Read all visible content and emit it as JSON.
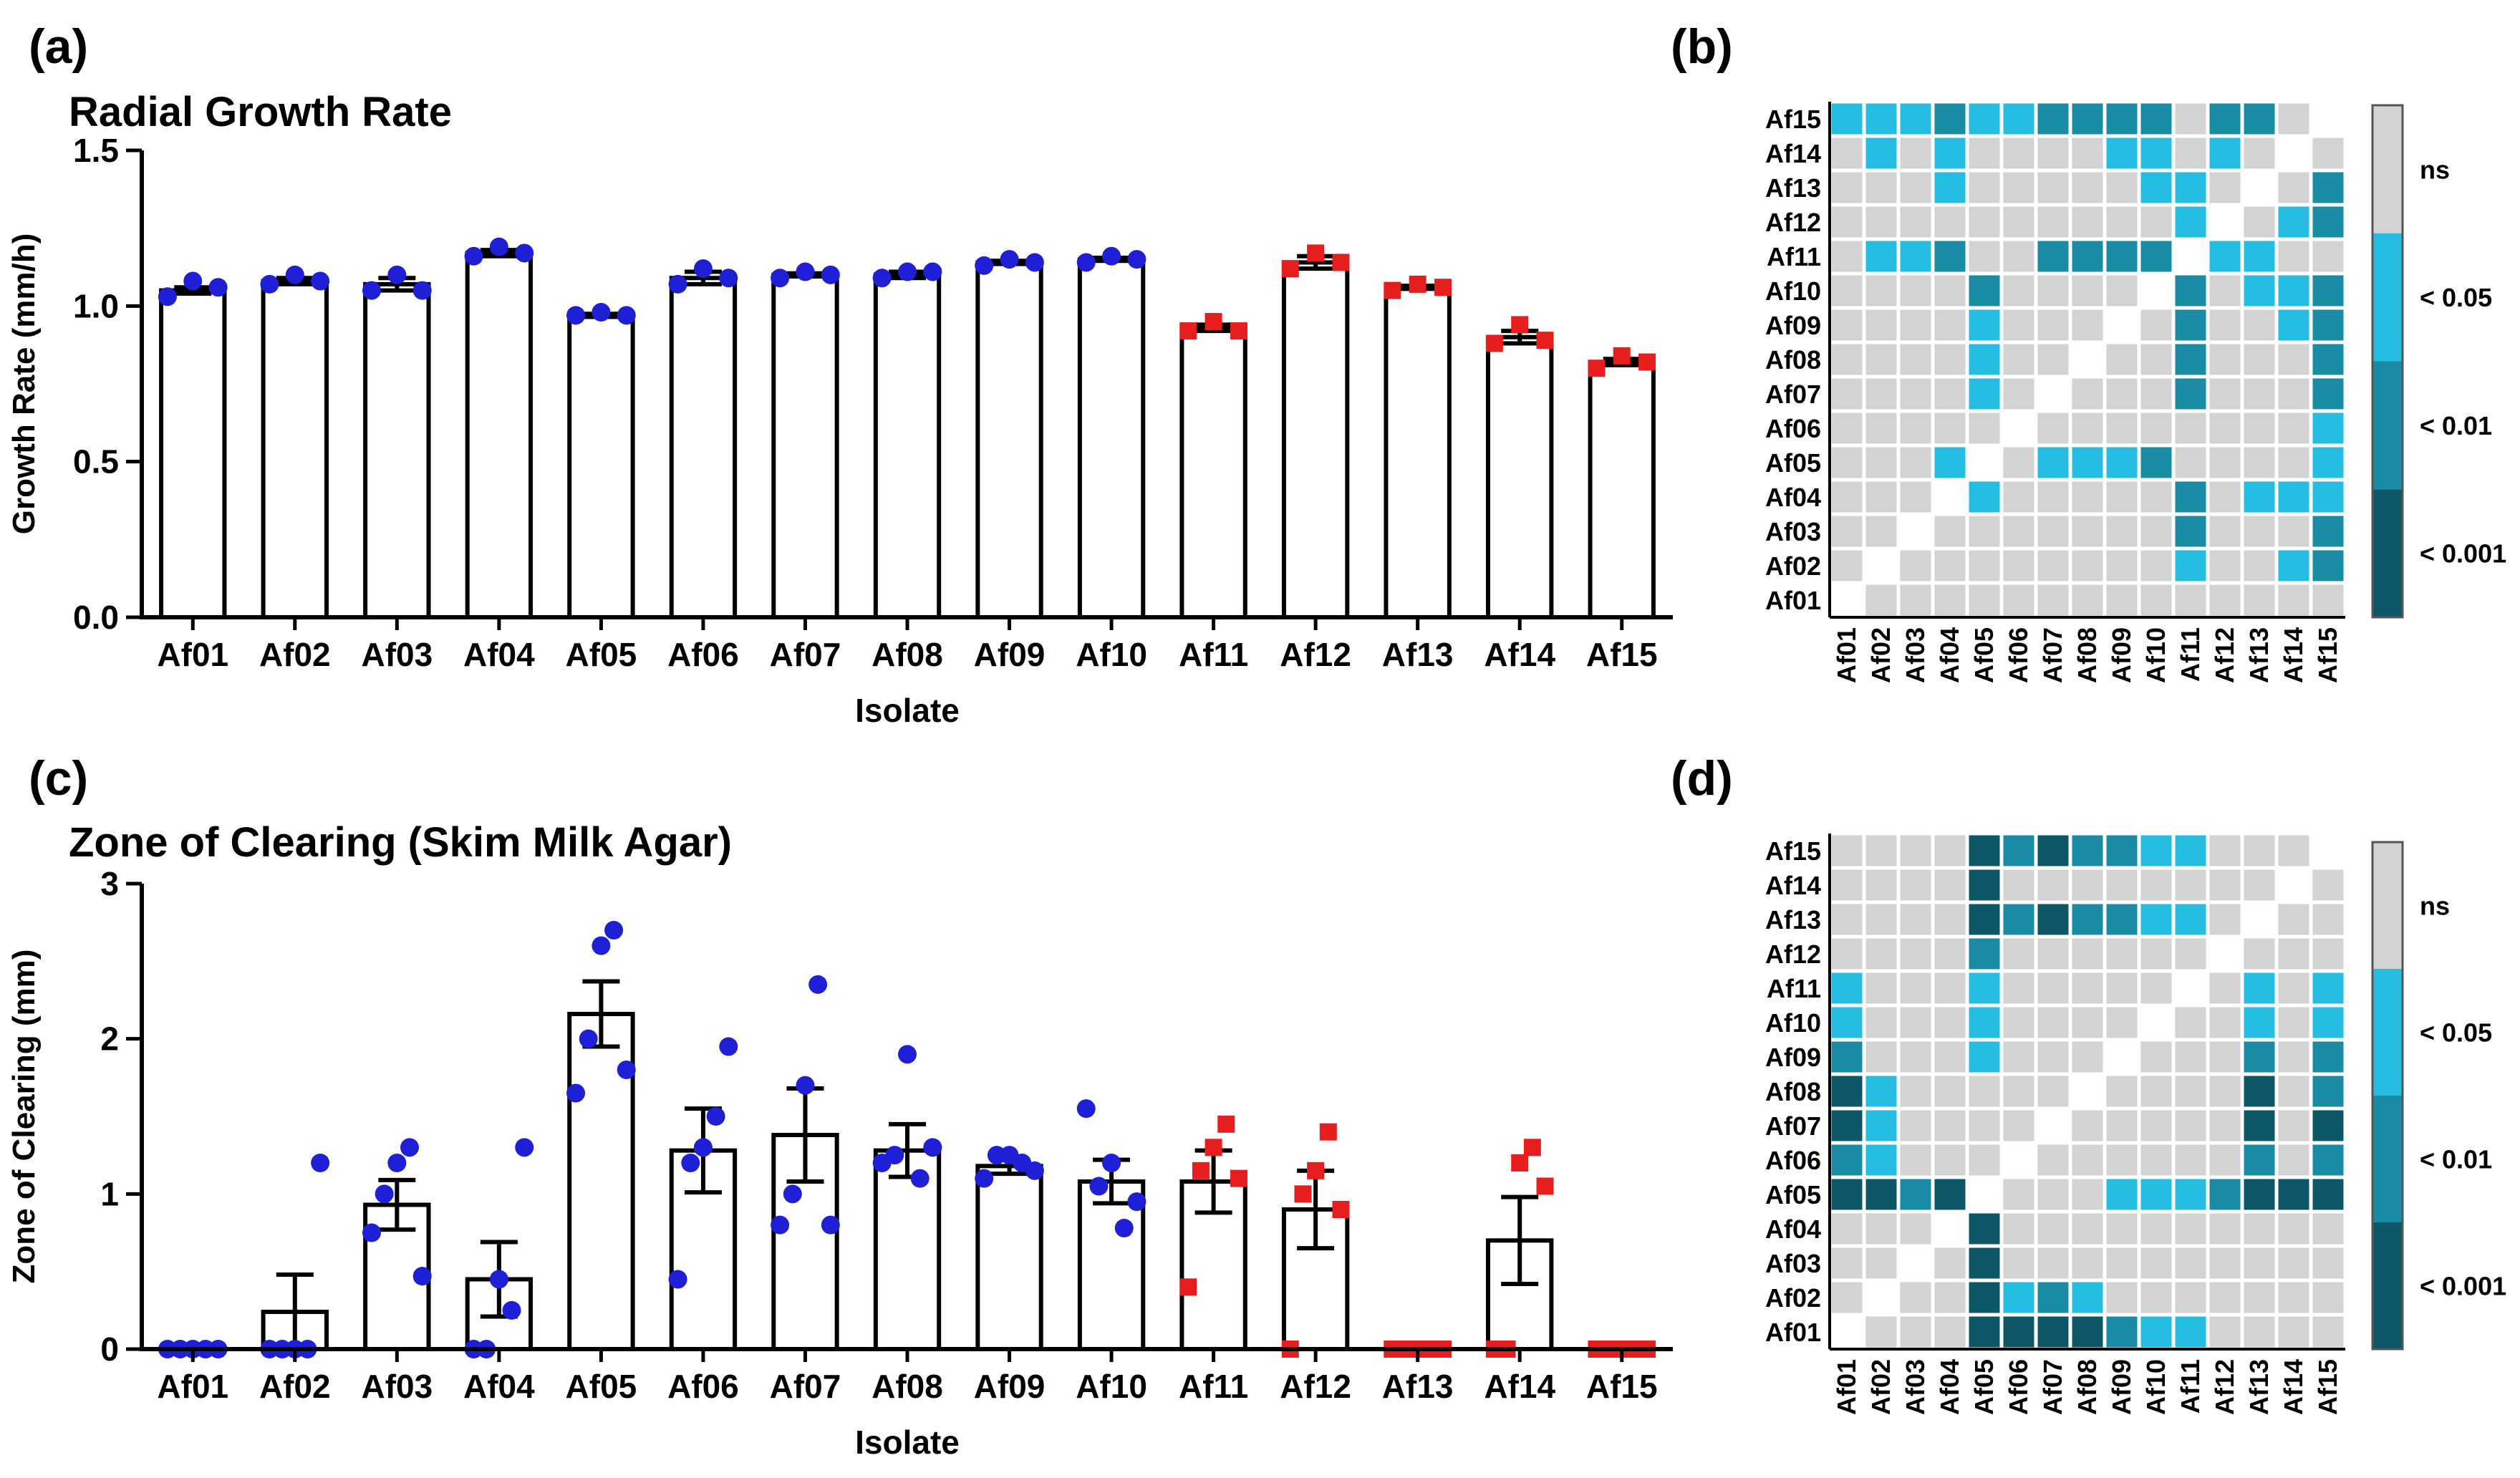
{
  "colors": {
    "bar_fill": "#ffffff",
    "axis": "#000000",
    "blue_points": "#1f1fd6",
    "red_points": "#e61e1e",
    "ns": "#d3d3d3",
    "p05": "#26bde2",
    "p01": "#1a8ba5",
    "p001": "#0e5769"
  },
  "chart_data": [
    {
      "id": "a",
      "type": "bar",
      "panel_label": "(a)",
      "title": "Radial  Growth Rate",
      "xlabel": "Isolate",
      "ylabel": "Growth Rate (mm/h)",
      "ylim": [
        0,
        1.5
      ],
      "yticks": [
        "0.0",
        "0.5",
        "1.0",
        "1.5"
      ],
      "categories": [
        "Af01",
        "Af02",
        "Af03",
        "Af04",
        "Af05",
        "Af06",
        "Af07",
        "Af08",
        "Af09",
        "Af10",
        "Af11",
        "Af12",
        "Af13",
        "Af14",
        "Af15"
      ],
      "values": [
        1.05,
        1.08,
        1.07,
        1.17,
        0.97,
        1.09,
        1.1,
        1.1,
        1.14,
        1.15,
        0.93,
        1.14,
        1.06,
        0.9,
        0.82
      ],
      "sem": [
        0.01,
        0.01,
        0.02,
        0.01,
        0.005,
        0.02,
        0.005,
        0.01,
        0.005,
        0.005,
        0.01,
        0.02,
        0.005,
        0.02,
        0.01
      ],
      "point_marker": [
        "circle",
        "circle",
        "circle",
        "circle",
        "circle",
        "circle",
        "circle",
        "circle",
        "circle",
        "circle",
        "square",
        "square",
        "square",
        "square",
        "square"
      ],
      "points": [
        [
          1.03,
          1.08,
          1.06
        ],
        [
          1.07,
          1.1,
          1.08
        ],
        [
          1.05,
          1.1,
          1.05
        ],
        [
          1.16,
          1.19,
          1.17
        ],
        [
          0.97,
          0.98,
          0.97
        ],
        [
          1.07,
          1.12,
          1.09
        ],
        [
          1.09,
          1.11,
          1.1
        ],
        [
          1.09,
          1.11,
          1.11
        ],
        [
          1.13,
          1.15,
          1.14
        ],
        [
          1.14,
          1.16,
          1.15
        ],
        [
          0.92,
          0.95,
          0.92
        ],
        [
          1.12,
          1.17,
          1.14
        ],
        [
          1.05,
          1.07,
          1.06
        ],
        [
          0.88,
          0.94,
          0.89
        ],
        [
          0.8,
          0.84,
          0.82
        ]
      ]
    },
    {
      "id": "c",
      "type": "bar",
      "panel_label": "(c)",
      "title": "Zone of Clearing (Skim Milk Agar)",
      "xlabel": "Isolate",
      "ylabel": "Zone of Clearing (mm)",
      "ylim": [
        0,
        3
      ],
      "yticks": [
        "0",
        "1",
        "2",
        "3"
      ],
      "categories": [
        "Af01",
        "Af02",
        "Af03",
        "Af04",
        "Af05",
        "Af06",
        "Af07",
        "Af08",
        "Af09",
        "Af10",
        "Af11",
        "Af12",
        "Af13",
        "Af14",
        "Af15"
      ],
      "values": [
        0,
        0.24,
        0.93,
        0.45,
        2.16,
        1.28,
        1.38,
        1.28,
        1.18,
        1.08,
        1.08,
        0.9,
        0,
        0.7,
        0
      ],
      "sem": [
        0,
        0.24,
        0.16,
        0.24,
        0.21,
        0.27,
        0.3,
        0.17,
        0.05,
        0.14,
        0.2,
        0.25,
        0,
        0.28,
        0
      ],
      "point_marker": [
        "circle",
        "circle",
        "circle",
        "circle",
        "circle",
        "circle",
        "circle",
        "circle",
        "circle",
        "circle",
        "square",
        "square",
        "square",
        "square",
        "square"
      ],
      "points": [
        [
          0,
          0,
          0,
          0,
          0
        ],
        [
          0,
          0,
          0,
          0,
          1.2
        ],
        [
          0.75,
          1.0,
          1.2,
          1.3,
          0.47
        ],
        [
          0,
          0,
          0.45,
          0.25,
          1.3
        ],
        [
          1.65,
          2.0,
          2.6,
          2.7,
          1.8
        ],
        [
          0.45,
          1.2,
          1.3,
          1.5,
          1.95
        ],
        [
          0.8,
          1.0,
          1.7,
          2.35,
          0.8
        ],
        [
          1.2,
          1.25,
          1.9,
          1.1,
          1.3
        ],
        [
          1.1,
          1.25,
          1.25,
          1.2,
          1.15
        ],
        [
          1.55,
          1.05,
          1.2,
          0.78,
          0.95
        ],
        [
          0.4,
          1.15,
          1.3,
          1.45,
          1.1
        ],
        [
          0,
          1.0,
          1.15,
          1.4,
          0.9
        ],
        [
          0,
          0,
          0,
          0,
          0
        ],
        [
          0,
          0,
          1.2,
          1.3,
          1.05
        ],
        [
          0,
          0,
          0,
          0,
          0
        ]
      ]
    },
    {
      "id": "b",
      "type": "heatmap",
      "panel_label": "(b)",
      "labels": [
        "Af01",
        "Af02",
        "Af03",
        "Af04",
        "Af05",
        "Af06",
        "Af07",
        "Af08",
        "Af09",
        "Af10",
        "Af11",
        "Af12",
        "Af13",
        "Af14",
        "Af15"
      ],
      "legend": [
        "ns",
        "< 0.05",
        "< 0.01",
        "< 0.001"
      ],
      "note": "matrix rows indexed Af01..Af15 (row 0 = Af01, drawn at bottom); 0=ns,1=<0.05,2=<0.01,3=<0.001,-1=diagonal",
      "matrix": [
        [
          -1,
          0,
          0,
          0,
          0,
          0,
          0,
          0,
          0,
          0,
          0,
          0,
          0,
          0,
          0
        ],
        [
          0,
          -1,
          0,
          0,
          0,
          0,
          0,
          0,
          0,
          0,
          1,
          0,
          0,
          1,
          2
        ],
        [
          0,
          0,
          -1,
          0,
          0,
          0,
          0,
          0,
          0,
          0,
          2,
          0,
          0,
          0,
          2
        ],
        [
          0,
          0,
          0,
          -1,
          1,
          0,
          0,
          0,
          0,
          0,
          2,
          0,
          1,
          1,
          1
        ],
        [
          0,
          0,
          0,
          1,
          -1,
          0,
          1,
          1,
          1,
          2,
          0,
          0,
          0,
          0,
          1
        ],
        [
          0,
          0,
          0,
          0,
          0,
          -1,
          0,
          0,
          0,
          0,
          0,
          0,
          0,
          0,
          1
        ],
        [
          0,
          0,
          0,
          0,
          1,
          0,
          -1,
          0,
          0,
          0,
          2,
          0,
          0,
          0,
          2
        ],
        [
          0,
          0,
          0,
          0,
          1,
          0,
          0,
          -1,
          0,
          0,
          2,
          0,
          0,
          0,
          2
        ],
        [
          0,
          0,
          0,
          0,
          1,
          0,
          0,
          0,
          -1,
          0,
          2,
          0,
          0,
          1,
          2
        ],
        [
          0,
          0,
          0,
          0,
          2,
          0,
          0,
          0,
          0,
          -1,
          2,
          0,
          1,
          1,
          2
        ],
        [
          0,
          1,
          1,
          2,
          0,
          0,
          2,
          2,
          2,
          2,
          -1,
          1,
          1,
          0,
          0
        ],
        [
          0,
          0,
          0,
          0,
          0,
          0,
          0,
          0,
          0,
          0,
          1,
          -1,
          0,
          1,
          2
        ],
        [
          0,
          0,
          0,
          1,
          0,
          0,
          0,
          0,
          0,
          1,
          1,
          0,
          -1,
          0,
          2
        ],
        [
          0,
          1,
          0,
          1,
          0,
          0,
          0,
          0,
          1,
          1,
          0,
          1,
          0,
          -1,
          0
        ],
        [
          1,
          1,
          1,
          2,
          1,
          1,
          2,
          2,
          2,
          2,
          0,
          2,
          2,
          0,
          -1
        ]
      ]
    },
    {
      "id": "d",
      "type": "heatmap",
      "panel_label": "(d)",
      "labels": [
        "Af01",
        "Af02",
        "Af03",
        "Af04",
        "Af05",
        "Af06",
        "Af07",
        "Af08",
        "Af09",
        "Af10",
        "Af11",
        "Af12",
        "Af13",
        "Af14",
        "Af15"
      ],
      "legend": [
        "ns",
        "< 0.05",
        "< 0.01",
        "< 0.001"
      ],
      "note": "matrix rows indexed Af01..Af15 (row 0 = Af01, drawn at bottom); 0=ns,1=<0.05,2=<0.01,3=<0.001,-1=diagonal",
      "matrix": [
        [
          -1,
          0,
          0,
          0,
          3,
          3,
          3,
          3,
          2,
          1,
          1,
          0,
          0,
          0,
          0
        ],
        [
          0,
          -1,
          0,
          0,
          3,
          1,
          2,
          1,
          0,
          0,
          0,
          0,
          0,
          0,
          0
        ],
        [
          0,
          0,
          -1,
          0,
          3,
          0,
          0,
          0,
          0,
          0,
          0,
          0,
          0,
          0,
          0
        ],
        [
          0,
          0,
          0,
          -1,
          3,
          0,
          0,
          0,
          0,
          0,
          0,
          0,
          0,
          0,
          0
        ],
        [
          3,
          3,
          2,
          3,
          -1,
          0,
          0,
          0,
          1,
          1,
          1,
          2,
          3,
          3,
          3
        ],
        [
          2,
          1,
          0,
          0,
          0,
          -1,
          0,
          0,
          0,
          0,
          0,
          0,
          2,
          0,
          2
        ],
        [
          3,
          1,
          0,
          0,
          0,
          0,
          -1,
          0,
          0,
          0,
          0,
          0,
          3,
          0,
          3
        ],
        [
          3,
          1,
          0,
          0,
          0,
          0,
          0,
          -1,
          0,
          0,
          0,
          0,
          3,
          0,
          2
        ],
        [
          2,
          0,
          0,
          0,
          1,
          0,
          0,
          0,
          -1,
          0,
          0,
          0,
          2,
          0,
          2
        ],
        [
          1,
          0,
          0,
          0,
          1,
          0,
          0,
          0,
          0,
          -1,
          0,
          0,
          1,
          0,
          1
        ],
        [
          1,
          0,
          0,
          0,
          1,
          0,
          0,
          0,
          0,
          0,
          -1,
          0,
          1,
          0,
          1
        ],
        [
          0,
          0,
          0,
          0,
          2,
          0,
          0,
          0,
          0,
          0,
          0,
          -1,
          0,
          0,
          0
        ],
        [
          0,
          0,
          0,
          0,
          3,
          2,
          3,
          2,
          2,
          1,
          1,
          0,
          -1,
          0,
          0
        ],
        [
          0,
          0,
          0,
          0,
          3,
          0,
          0,
          0,
          0,
          0,
          0,
          0,
          0,
          -1,
          0
        ],
        [
          0,
          0,
          0,
          0,
          3,
          2,
          3,
          2,
          2,
          1,
          1,
          0,
          0,
          0,
          -1
        ]
      ]
    }
  ]
}
